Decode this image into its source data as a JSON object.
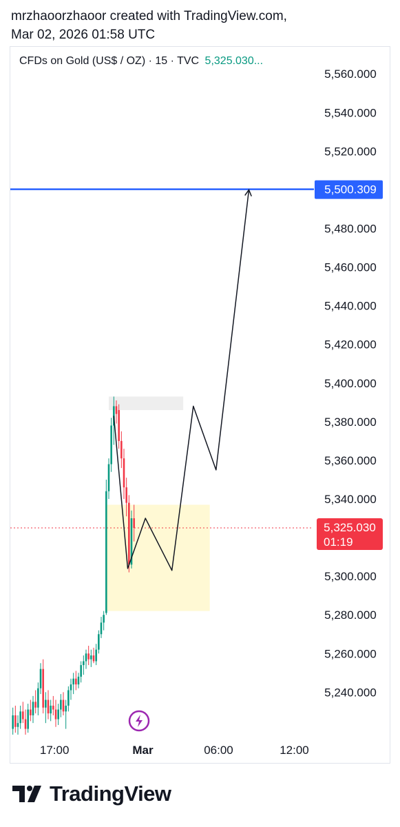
{
  "header": {
    "line1": "mrzhaoorzhaoor created with TradingView.com,",
    "line2": "Mar 02, 2026 01:58 UTC"
  },
  "legend": {
    "symbol": "CFDs on Gold (US$ / OZ) · 15 · TVC",
    "price": "5,325.030..."
  },
  "chart_data": {
    "type": "candlestick",
    "y_axis": {
      "ticks": [
        "5,560.000",
        "5,540.000",
        "5,520.000",
        "5,500.000",
        "5,480.000",
        "5,460.000",
        "5,440.000",
        "5,420.000",
        "5,400.000",
        "5,380.000",
        "5,360.000",
        "5,340.000",
        "5,320.000",
        "5,300.000",
        "5,280.000",
        "5,260.000",
        "5,240.000"
      ],
      "tick_values": [
        5560,
        5540,
        5520,
        5500,
        5480,
        5460,
        5440,
        5420,
        5400,
        5380,
        5360,
        5340,
        5320,
        5300,
        5280,
        5260,
        5240
      ],
      "range": [
        5218,
        5574
      ]
    },
    "x_axis": {
      "ticks": [
        "17:00",
        "Mar",
        "06:00",
        "12:00"
      ],
      "tick_hours": [
        -7,
        0,
        6,
        12
      ],
      "range_hours": [
        -10.5,
        13.5
      ]
    },
    "candles": [
      {
        "t": -10.3,
        "o": 5221,
        "h": 5232,
        "l": 5218,
        "c": 5228
      },
      {
        "t": -10.1,
        "o": 5228,
        "h": 5233,
        "l": 5219,
        "c": 5222
      },
      {
        "t": -9.9,
        "o": 5222,
        "h": 5228,
        "l": 5218,
        "c": 5224
      },
      {
        "t": -9.7,
        "o": 5224,
        "h": 5233,
        "l": 5221,
        "c": 5230
      },
      {
        "t": -9.5,
        "o": 5230,
        "h": 5235,
        "l": 5224,
        "c": 5226
      },
      {
        "t": -9.3,
        "o": 5226,
        "h": 5231,
        "l": 5218,
        "c": 5221
      },
      {
        "t": -9.1,
        "o": 5221,
        "h": 5234,
        "l": 5219,
        "c": 5231
      },
      {
        "t": -8.9,
        "o": 5231,
        "h": 5236,
        "l": 5225,
        "c": 5228
      },
      {
        "t": -8.7,
        "o": 5228,
        "h": 5238,
        "l": 5224,
        "c": 5235
      },
      {
        "t": -8.5,
        "o": 5235,
        "h": 5241,
        "l": 5229,
        "c": 5232
      },
      {
        "t": -8.3,
        "o": 5232,
        "h": 5245,
        "l": 5228,
        "c": 5242
      },
      {
        "t": -8.1,
        "o": 5242,
        "h": 5255,
        "l": 5239,
        "c": 5252
      },
      {
        "t": -7.9,
        "o": 5252,
        "h": 5257,
        "l": 5229,
        "c": 5232
      },
      {
        "t": -7.7,
        "o": 5232,
        "h": 5240,
        "l": 5224,
        "c": 5236
      },
      {
        "t": -7.5,
        "o": 5236,
        "h": 5241,
        "l": 5226,
        "c": 5229
      },
      {
        "t": -7.3,
        "o": 5229,
        "h": 5236,
        "l": 5225,
        "c": 5233
      },
      {
        "t": -7.1,
        "o": 5233,
        "h": 5238,
        "l": 5228,
        "c": 5231
      },
      {
        "t": -6.9,
        "o": 5231,
        "h": 5236,
        "l": 5222,
        "c": 5226
      },
      {
        "t": -6.7,
        "o": 5226,
        "h": 5234,
        "l": 5223,
        "c": 5231
      },
      {
        "t": -6.5,
        "o": 5231,
        "h": 5239,
        "l": 5227,
        "c": 5236
      },
      {
        "t": -6.3,
        "o": 5236,
        "h": 5240,
        "l": 5228,
        "c": 5230
      },
      {
        "t": -6.1,
        "o": 5230,
        "h": 5236,
        "l": 5221,
        "c": 5233
      },
      {
        "t": -5.9,
        "o": 5233,
        "h": 5243,
        "l": 5230,
        "c": 5241
      },
      {
        "t": -5.7,
        "o": 5241,
        "h": 5247,
        "l": 5236,
        "c": 5244
      },
      {
        "t": -5.5,
        "o": 5244,
        "h": 5250,
        "l": 5239,
        "c": 5247
      },
      {
        "t": -5.3,
        "o": 5247,
        "h": 5251,
        "l": 5241,
        "c": 5244
      },
      {
        "t": -5.1,
        "o": 5244,
        "h": 5250,
        "l": 5242,
        "c": 5248
      },
      {
        "t": -4.9,
        "o": 5248,
        "h": 5256,
        "l": 5245,
        "c": 5254
      },
      {
        "t": -4.7,
        "o": 5254,
        "h": 5259,
        "l": 5249,
        "c": 5256
      },
      {
        "t": -4.5,
        "o": 5256,
        "h": 5262,
        "l": 5252,
        "c": 5260
      },
      {
        "t": -4.3,
        "o": 5260,
        "h": 5264,
        "l": 5254,
        "c": 5257
      },
      {
        "t": -4.1,
        "o": 5257,
        "h": 5262,
        "l": 5253,
        "c": 5259
      },
      {
        "t": -3.9,
        "o": 5259,
        "h": 5263,
        "l": 5255,
        "c": 5256
      },
      {
        "t": -3.7,
        "o": 5256,
        "h": 5265,
        "l": 5254,
        "c": 5262
      },
      {
        "t": -3.5,
        "o": 5262,
        "h": 5272,
        "l": 5260,
        "c": 5270
      },
      {
        "t": -3.3,
        "o": 5270,
        "h": 5279,
        "l": 5268,
        "c": 5276
      },
      {
        "t": -3.1,
        "o": 5276,
        "h": 5282,
        "l": 5272,
        "c": 5280
      },
      {
        "t": -2.9,
        "o": 5281,
        "h": 5350,
        "l": 5280,
        "c": 5344
      },
      {
        "t": -2.7,
        "o": 5344,
        "h": 5361,
        "l": 5340,
        "c": 5358
      },
      {
        "t": -2.5,
        "o": 5358,
        "h": 5382,
        "l": 5354,
        "c": 5378
      },
      {
        "t": -2.3,
        "o": 5378,
        "h": 5393,
        "l": 5368,
        "c": 5388
      },
      {
        "t": -2.1,
        "o": 5388,
        "h": 5391,
        "l": 5379,
        "c": 5384
      },
      {
        "t": -1.9,
        "o": 5386,
        "h": 5389,
        "l": 5366,
        "c": 5370
      },
      {
        "t": -1.7,
        "o": 5370,
        "h": 5375,
        "l": 5356,
        "c": 5361
      },
      {
        "t": -1.5,
        "o": 5361,
        "h": 5366,
        "l": 5340,
        "c": 5346
      },
      {
        "t": -1.3,
        "o": 5346,
        "h": 5351,
        "l": 5331,
        "c": 5338
      },
      {
        "t": -1.1,
        "o": 5338,
        "h": 5342,
        "l": 5302,
        "c": 5306
      },
      {
        "t": -0.9,
        "o": 5306,
        "h": 5334,
        "l": 5304,
        "c": 5330
      },
      {
        "t": -0.7,
        "o": 5330,
        "h": 5337,
        "l": 5318,
        "c": 5325
      }
    ],
    "current_price": {
      "value": 5325.03,
      "label": "5,325.030",
      "countdown": "01:19",
      "color": "#f23645"
    },
    "horizontal_line": {
      "value": 5500.309,
      "label": "5,500.309",
      "color": "#2962ff"
    },
    "zones": [
      {
        "t_start": -2.7,
        "t_end": 3.2,
        "y_low": 5386,
        "y_high": 5393,
        "color": "#eeeeee"
      },
      {
        "t_start": -2.9,
        "t_end": 5.3,
        "y_low": 5282,
        "y_high": 5337,
        "color": "#fff9d4"
      }
    ],
    "projection_path": [
      {
        "t": -2.3,
        "v": 5383
      },
      {
        "t": -1.2,
        "v": 5304
      },
      {
        "t": 0.2,
        "v": 5330
      },
      {
        "t": 2.3,
        "v": 5303
      },
      {
        "t": 4.0,
        "v": 5388
      },
      {
        "t": 5.8,
        "v": 5355
      },
      {
        "t": 8.4,
        "v": 5500
      }
    ],
    "colors": {
      "up": "#089981",
      "down": "#f23645",
      "projection": "#131722"
    },
    "event_icon": {
      "t": -0.3,
      "name": "lightning-icon",
      "color": "#9c27b0"
    }
  },
  "footer": {
    "brand": "TradingView"
  }
}
